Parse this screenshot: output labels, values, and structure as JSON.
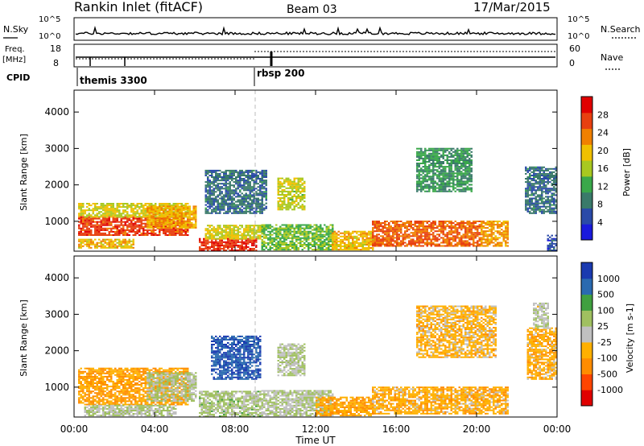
{
  "header": {
    "station": "Rankin Inlet (fitACF)",
    "beam": "Beam 03",
    "date": "17/Mar/2015"
  },
  "noise_panel": {
    "left_label": "N.Sky",
    "right_label": "N.Search",
    "left_ticks": [
      "10^5",
      "10^0"
    ],
    "right_ticks": [
      "10^5",
      "10^0"
    ]
  },
  "freq_panel": {
    "left_label": "Freq.",
    "left_unit": "[MHz]",
    "left_ticks": [
      "18",
      "8"
    ],
    "right_label": "Nave",
    "right_ticks": [
      "60",
      "0"
    ]
  },
  "cpid": {
    "label": "CPID",
    "modes": [
      {
        "name": "themis 3300",
        "start_hour": 0.0
      },
      {
        "name": "rbsp 200",
        "start_hour": 9.0
      }
    ]
  },
  "colors": {
    "scale": [
      "#1a1adc",
      "#2a4aa8",
      "#3a7a6a",
      "#3aa84a",
      "#a8c820",
      "#f0c000",
      "#f08000",
      "#e84010",
      "#e00000"
    ],
    "velocity_scale": [
      "#e00000",
      "#ff4500",
      "#ff8c00",
      "#ffb000",
      "#c0c0c0",
      "#a0c060",
      "#40a040",
      "#2a6ab0",
      "#1a3ab0"
    ]
  },
  "chart_data": [
    {
      "type": "heatmap",
      "name": "power",
      "xlabel": "",
      "ylabel": "Slant Range [km]",
      "xlim": [
        0,
        24
      ],
      "ylim": [
        180,
        4600
      ],
      "yticks": [
        1000,
        2000,
        3000,
        4000
      ],
      "colorbar": {
        "label": "Power [dB]",
        "ticks": [
          "4",
          "8",
          "12",
          "16",
          "20",
          "24",
          "28"
        ],
        "min": 0,
        "max": 32
      },
      "bands": [
        {
          "t0": 0.2,
          "t1": 5.6,
          "r0": 600,
          "r1": 1100,
          "v": 27
        },
        {
          "t0": 0.2,
          "t1": 5.6,
          "r0": 1100,
          "r1": 1500,
          "v": 18
        },
        {
          "t0": 0.2,
          "t1": 3.0,
          "r0": 250,
          "r1": 500,
          "v": 20
        },
        {
          "t0": 3.6,
          "t1": 6.0,
          "r0": 800,
          "r1": 1400,
          "v": 21
        },
        {
          "t0": 6.2,
          "t1": 9.0,
          "r0": 180,
          "r1": 500,
          "v": 28
        },
        {
          "t0": 6.5,
          "t1": 9.4,
          "r0": 500,
          "r1": 900,
          "v": 18
        },
        {
          "t0": 6.5,
          "t1": 9.5,
          "r0": 1200,
          "r1": 2400,
          "v": 8
        },
        {
          "t0": 9.3,
          "t1": 12.8,
          "r0": 200,
          "r1": 900,
          "v": 14
        },
        {
          "t0": 10.1,
          "t1": 11.4,
          "r0": 1300,
          "r1": 2200,
          "v": 17
        },
        {
          "t0": 12.8,
          "t1": 14.8,
          "r0": 200,
          "r1": 700,
          "v": 20
        },
        {
          "t0": 14.8,
          "t1": 20.2,
          "r0": 300,
          "r1": 1000,
          "v": 25
        },
        {
          "t0": 20.2,
          "t1": 21.6,
          "r0": 300,
          "r1": 1000,
          "v": 22
        },
        {
          "t0": 17.0,
          "t1": 19.8,
          "r0": 1800,
          "r1": 3000,
          "v": 11
        },
        {
          "t0": 22.4,
          "t1": 24.0,
          "r0": 1200,
          "r1": 2500,
          "v": 8
        },
        {
          "t0": 23.5,
          "t1": 24.0,
          "r0": 180,
          "r1": 600,
          "v": 6
        }
      ]
    },
    {
      "type": "heatmap",
      "name": "velocity",
      "xlabel": "Time UT",
      "ylabel": "Slant Range [km]",
      "xlim": [
        0,
        24
      ],
      "ylim": [
        180,
        4600
      ],
      "yticks": [
        1000,
        2000,
        3000,
        4000
      ],
      "xticks": [
        "00:00",
        "04:00",
        "08:00",
        "12:00",
        "16:00",
        "20:00",
        "00:00"
      ],
      "colorbar": {
        "label": "Velocity [m s-1]",
        "ticks": [
          "-1000",
          "-500",
          "-100",
          "-25",
          "25",
          "100",
          "500",
          "1000"
        ],
        "min": -1200,
        "max": 1200
      },
      "bands": [
        {
          "t0": 0.2,
          "t1": 5.6,
          "r0": 500,
          "r1": 1500,
          "v": -400
        },
        {
          "t0": 3.6,
          "t1": 6.0,
          "r0": 600,
          "r1": 1400,
          "v": 150
        },
        {
          "t0": 0.5,
          "t1": 5.0,
          "r0": 200,
          "r1": 500,
          "v": 150
        },
        {
          "t0": 6.2,
          "t1": 9.2,
          "r0": 180,
          "r1": 900,
          "v": 200
        },
        {
          "t0": 6.8,
          "t1": 9.2,
          "r0": 1200,
          "r1": 2400,
          "v": 900
        },
        {
          "t0": 9.3,
          "t1": 12.8,
          "r0": 200,
          "r1": 900,
          "v": 120
        },
        {
          "t0": 10.1,
          "t1": 11.4,
          "r0": 1300,
          "r1": 2200,
          "v": 120
        },
        {
          "t0": 12.0,
          "t1": 14.8,
          "r0": 200,
          "r1": 700,
          "v": -350
        },
        {
          "t0": 14.8,
          "t1": 21.6,
          "r0": 250,
          "r1": 1000,
          "v": -300
        },
        {
          "t0": 17.0,
          "t1": 21.0,
          "r0": 1800,
          "r1": 3200,
          "v": -250
        },
        {
          "t0": 22.5,
          "t1": 24.0,
          "r0": 1200,
          "r1": 2600,
          "v": -300
        },
        {
          "t0": 22.8,
          "t1": 23.6,
          "r0": 2600,
          "r1": 3300,
          "v": 80
        }
      ]
    }
  ]
}
